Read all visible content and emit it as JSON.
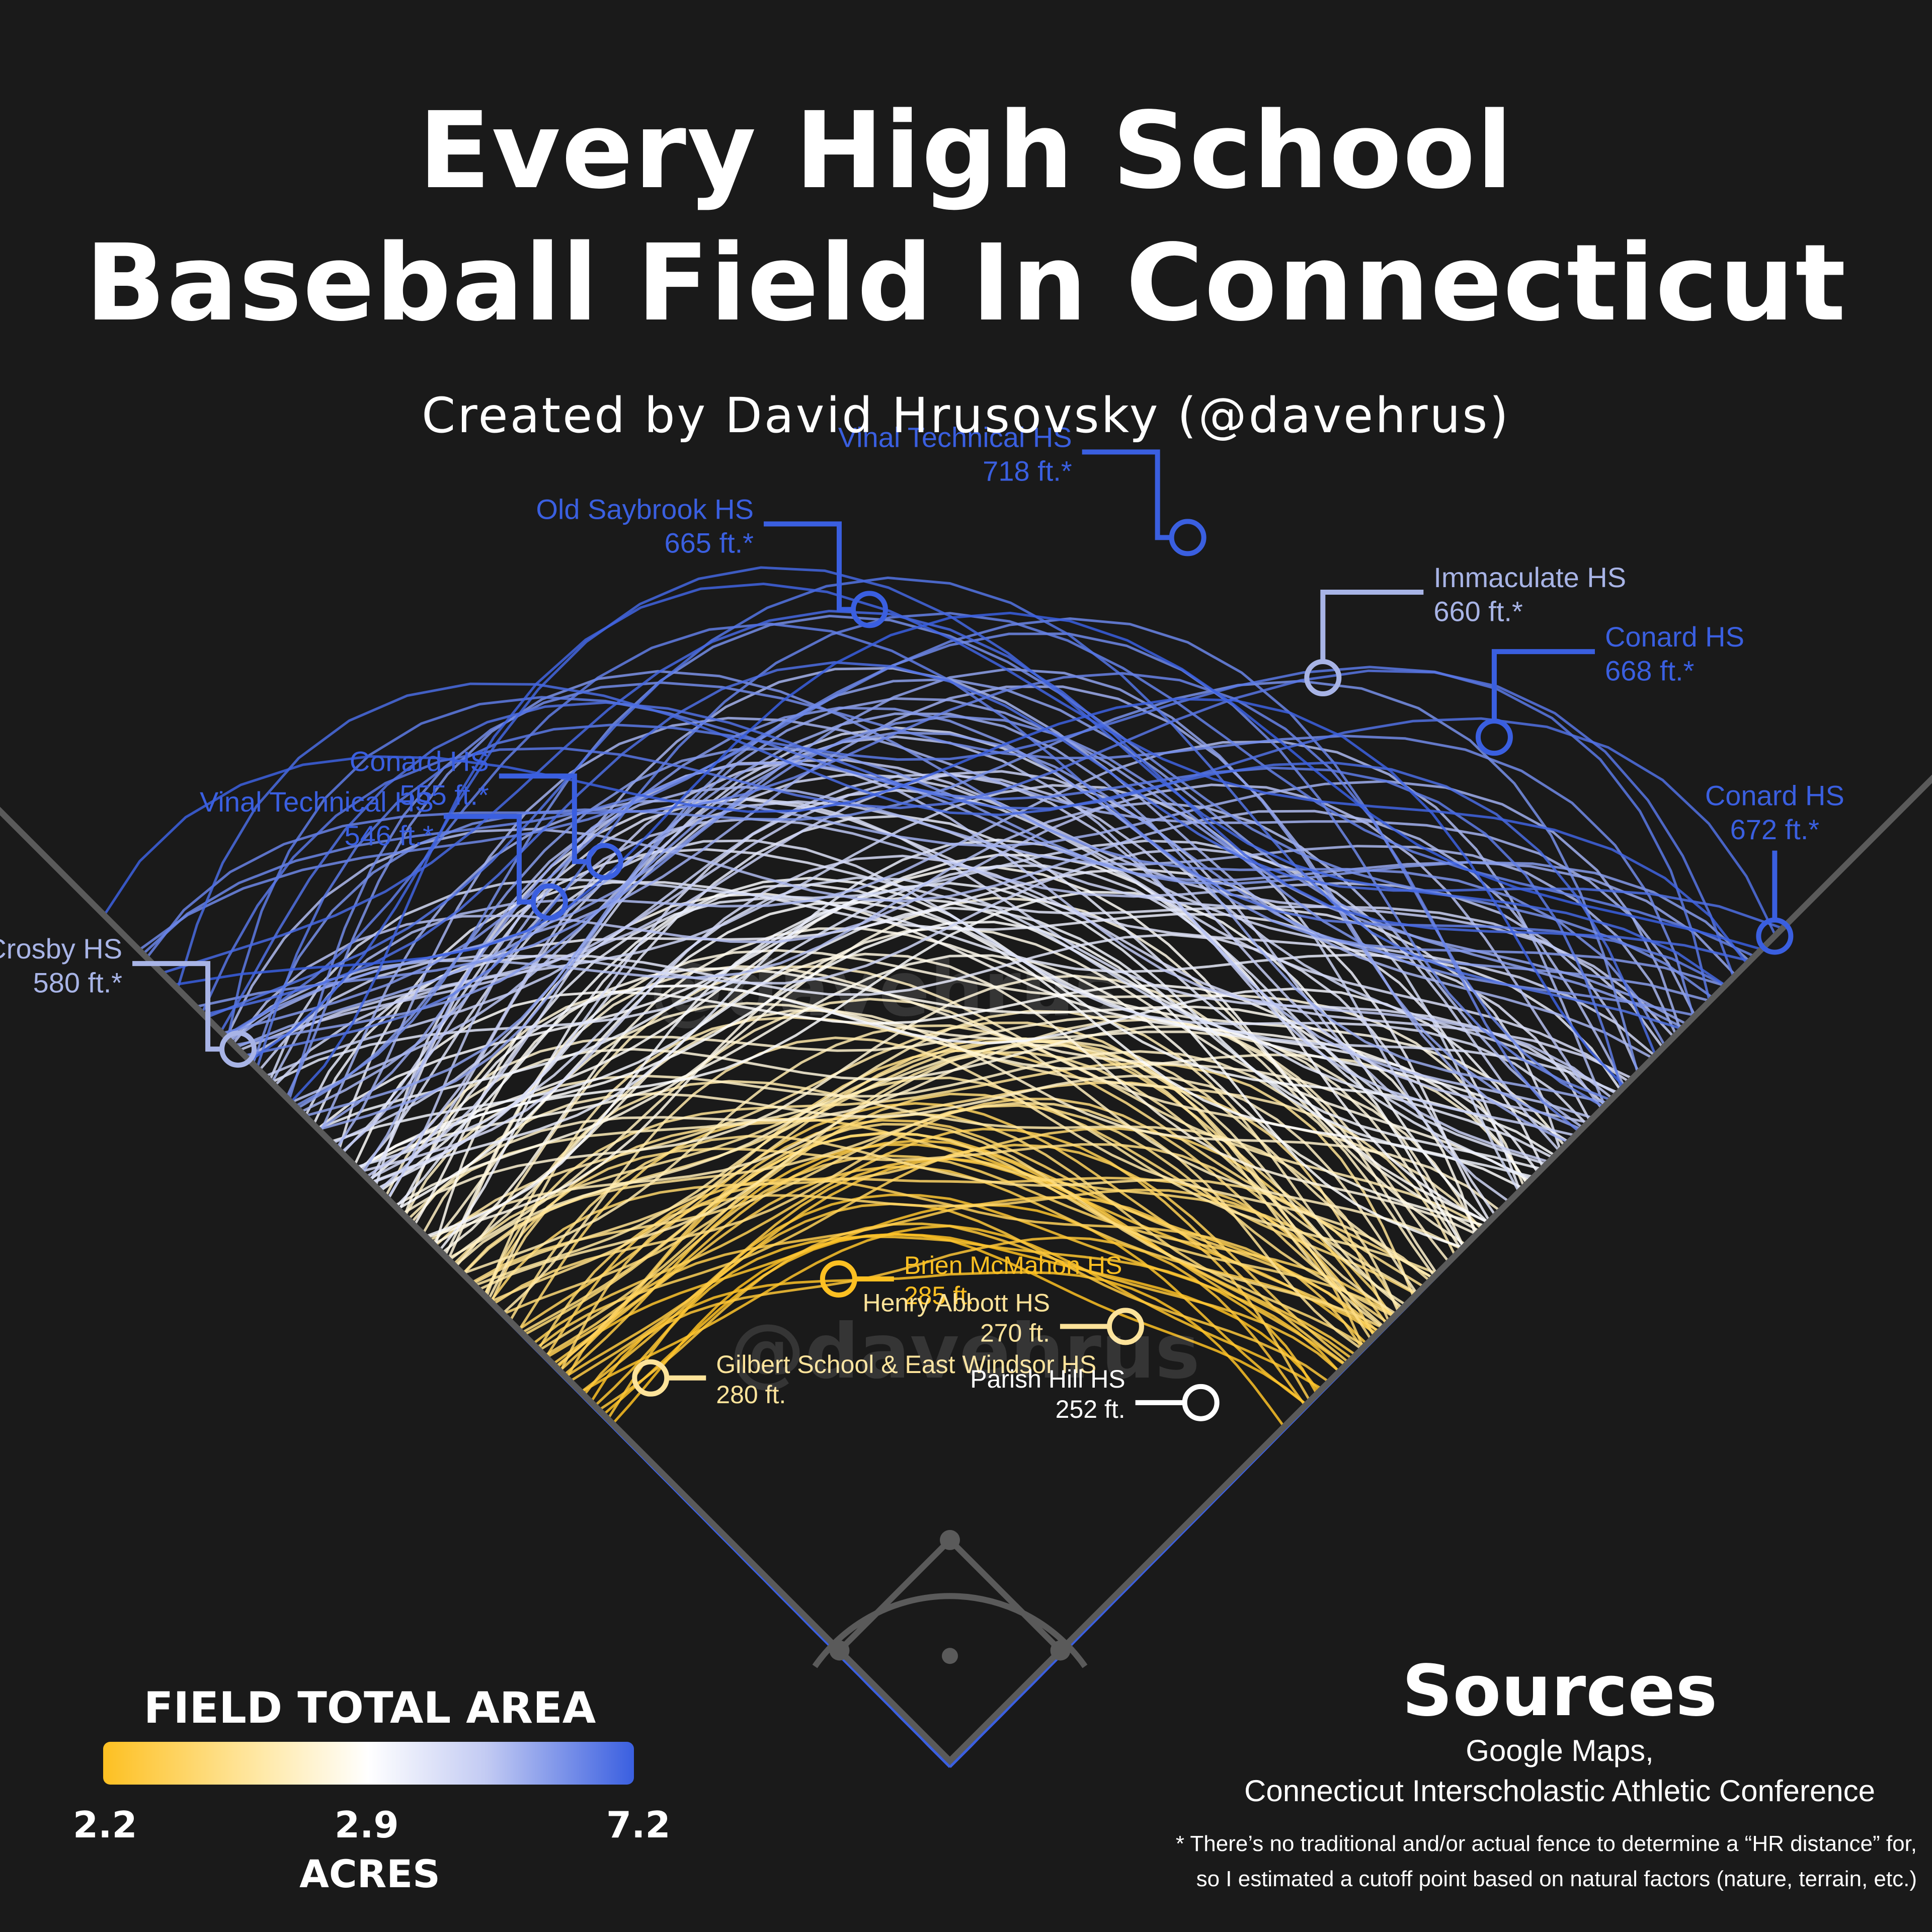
{
  "title_line1": "Every High School",
  "title_line2": "Baseball Field In Connecticut",
  "subtitle": "Created by David Hrusovsky (@davehrus)",
  "watermark": "@davehrus",
  "legend": {
    "title": "FIELD TOTAL AREA",
    "ticks": [
      "2.2",
      "2.9",
      "7.2"
    ],
    "unit": "ACRES",
    "colors": [
      "#fdc022",
      "#ffffff",
      "#3a5fe0"
    ]
  },
  "sources": {
    "title": "Sources",
    "line1": "Google Maps,",
    "line2": "Connecticut Interscholastic Athletic Conference",
    "note_line1": "* There’s no traditional and/or actual fence to determine a “HR distance” for,",
    "note_line2": "so I estimated a cutoff point based on natural factors (nature, terrain, etc.)"
  },
  "chart_data": {
    "type": "scatter",
    "title": "Every High School Baseball Field In Connecticut",
    "color_scale": {
      "label": "FIELD TOTAL AREA",
      "unit": "ACRES",
      "ticks": [
        2.2,
        2.9,
        7.2
      ]
    },
    "annotations": [
      {
        "name": "Vinal Technical HS",
        "distance": "718 ft.*",
        "angle_deg": 11,
        "feet": 718,
        "color": "#3a5fe0",
        "anchor": "left"
      },
      {
        "name": "Old Saybrook HS",
        "distance": "665 ft.*",
        "angle_deg": -4,
        "feet": 665,
        "color": "#3a5fe0",
        "anchor": "left"
      },
      {
        "name": "Immaculate HS",
        "distance": "660 ft.*",
        "angle_deg": 19,
        "feet": 660,
        "color": "#a8b4e6",
        "anchor": "right"
      },
      {
        "name": "Conard HS",
        "distance": "668 ft.*",
        "angle_deg": 28,
        "feet": 668,
        "color": "#3a5fe0",
        "anchor": "right"
      },
      {
        "name": "Conard HS",
        "distance": "555 ft.*",
        "angle_deg": -21,
        "feet": 555,
        "color": "#3a5fe0",
        "anchor": "left"
      },
      {
        "name": "Vinal Technical HS",
        "distance": "546 ft.*",
        "angle_deg": -25,
        "feet": 546,
        "color": "#3a5fe0",
        "anchor": "left"
      },
      {
        "name": "Conard HS",
        "distance": "672 ft.*",
        "angle_deg": 45,
        "feet": 672,
        "color": "#3a5fe0",
        "anchor": "above"
      },
      {
        "name": "Crosby HS",
        "distance": "580 ft.*",
        "angle_deg": -45,
        "feet": 580,
        "color": "#a8b4e6",
        "anchor": "left"
      },
      {
        "name": "Brien McMahon HS",
        "distance": "285 ft.",
        "angle_deg": -13,
        "feet": 285,
        "color": "#fdc022",
        "anchor": "right"
      },
      {
        "name": "Henry Abbott HS",
        "distance": "270 ft.",
        "angle_deg": 22,
        "feet": 270,
        "color": "#fde39a",
        "anchor": "left"
      },
      {
        "name": "Gilbert School & East Windsor HS",
        "distance": "280 ft.",
        "angle_deg": -38,
        "feet": 280,
        "color": "#fde39a",
        "anchor": "right"
      },
      {
        "name": "Parish Hill HS",
        "distance": "252 ft.",
        "angle_deg": 35,
        "feet": 252,
        "color": "#ffffff",
        "anchor": "left"
      }
    ]
  }
}
